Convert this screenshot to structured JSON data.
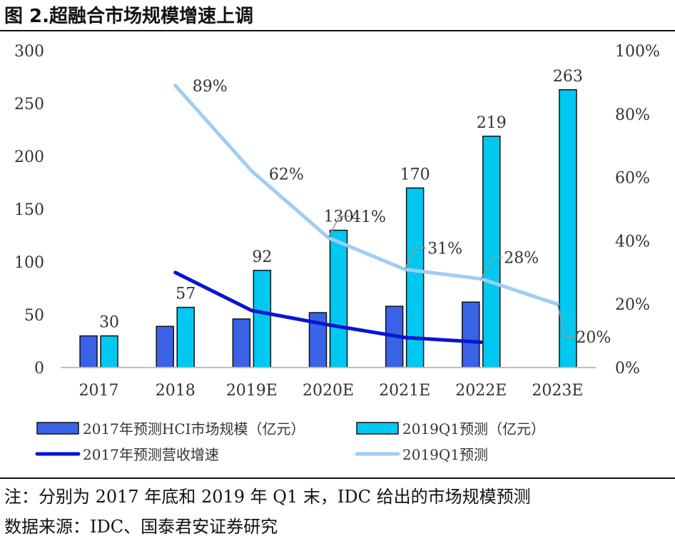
{
  "title": "图 2.超融合市场规模增速上调",
  "note": "注：分别为 2017 年底和 2019 年 Q1 末，IDC 给出的市场规模预测",
  "source": "数据来源：IDC、国泰君安证券研究",
  "colors": {
    "bar2017": "#3a62e6",
    "bar2019": "#00c8f0",
    "line2017": "#0a14d2",
    "line2019": "#9fcdf5",
    "leader": "#999999"
  },
  "chart_data": {
    "type": "bar",
    "categories": [
      "2017",
      "2018",
      "2019E",
      "2020E",
      "2021E",
      "2022E",
      "2023E"
    ],
    "series": [
      {
        "name": "2017年预测HCI市场规模（亿元）",
        "type": "bar",
        "axis": "left",
        "values": [
          30,
          39,
          46,
          52,
          58,
          62,
          null
        ]
      },
      {
        "name": "2019Q1预测（亿元）",
        "type": "bar",
        "axis": "left",
        "values": [
          30,
          57,
          92,
          130,
          170,
          219,
          263
        ],
        "labels": [
          "30",
          "57",
          "92",
          "130",
          "170",
          "219",
          "263"
        ]
      },
      {
        "name": "2017年预测营收增速",
        "type": "line",
        "axis": "right",
        "values": [
          null,
          0.3,
          0.18,
          0.135,
          0.095,
          0.08,
          null
        ]
      },
      {
        "name": "2019Q1预测",
        "type": "line",
        "axis": "right",
        "values": [
          null,
          0.89,
          0.62,
          0.41,
          0.31,
          0.28,
          0.2
        ],
        "labels": [
          "",
          "89%",
          "62%",
          "41%",
          "31%",
          "28%",
          "20%"
        ]
      }
    ],
    "ylim_left": [
      0,
      300
    ],
    "yticks_left": [
      "0",
      "50",
      "100",
      "150",
      "200",
      "250",
      "300"
    ],
    "ylim_right": [
      0,
      1
    ],
    "yticks_right": [
      "0%",
      "20%",
      "40%",
      "60%",
      "80%",
      "100%"
    ],
    "grid": false,
    "legend_position": "bottom"
  }
}
